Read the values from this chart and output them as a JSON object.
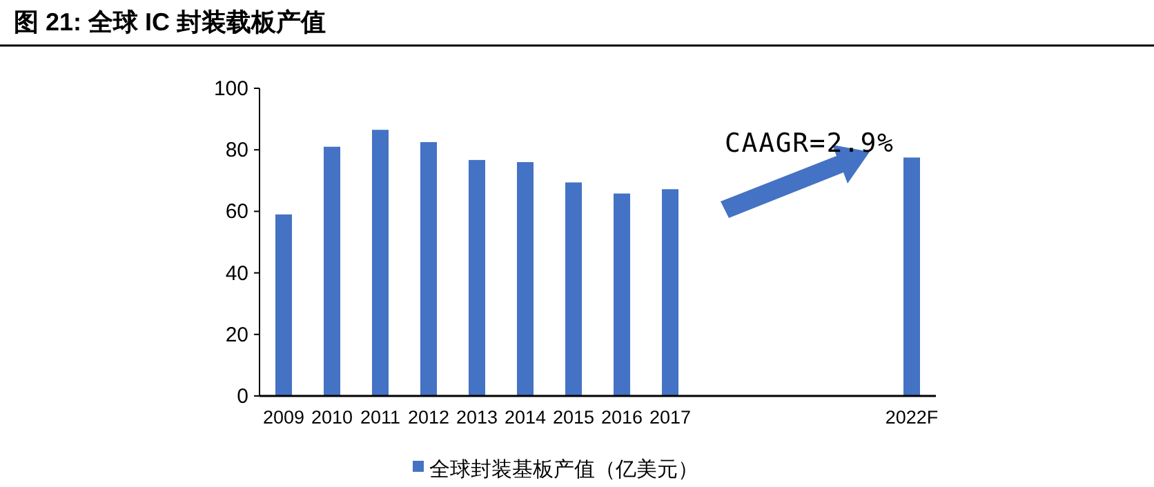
{
  "chart_data": {
    "type": "bar",
    "title": "图 21: 全球 IC 封装载板产值",
    "categories": [
      "2009",
      "2010",
      "2011",
      "2012",
      "2013",
      "2014",
      "2015",
      "2016",
      "2017",
      null,
      null,
      null,
      null,
      "2022F"
    ],
    "series": [
      {
        "name": "全球封装基板产值（亿美元）",
        "color": "#4472c4",
        "values": [
          59,
          81,
          86.5,
          82.5,
          76.7,
          76,
          69.4,
          65.8,
          67.2,
          null,
          null,
          null,
          null,
          77.5
        ]
      }
    ],
    "ylim": [
      0,
      100
    ],
    "yticks": [
      0,
      20,
      40,
      60,
      80,
      100
    ],
    "annotations": [
      "CAAGR=2.9%"
    ],
    "legend": "bottom"
  }
}
